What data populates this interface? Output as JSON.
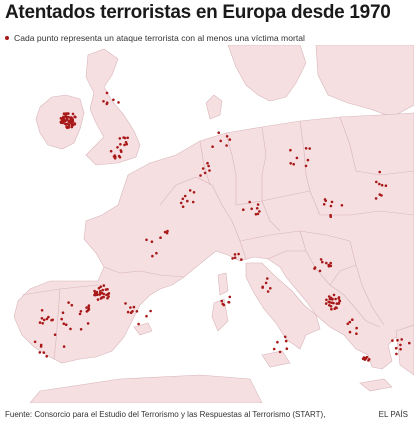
{
  "title": "Atentados terroristas en Europa desde 1970",
  "legend": {
    "label": "Cada punto representa un ataque terrorista con al menos una víctima mortal"
  },
  "footer": {
    "source": "Fuente:  Consorcio para el Estudio del Terrorismo y las Respuestas al Terrorismo (START),",
    "brand": "EL PAÍS"
  },
  "colors": {
    "sea": "#ffffff",
    "land": "#f6dfe1",
    "border": "#d7b6ba",
    "dot": "#a81818"
  }
}
